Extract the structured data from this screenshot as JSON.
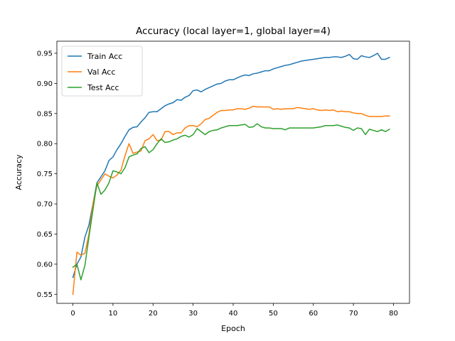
{
  "chart_data": {
    "type": "line",
    "title": "Accuracy (local layer=1, global layer=4)",
    "xlabel": "Epoch",
    "ylabel": "Accuracy",
    "xlim": [
      -4,
      84
    ],
    "ylim": [
      0.535,
      0.97
    ],
    "xticks": [
      0,
      10,
      20,
      30,
      40,
      50,
      60,
      70,
      80
    ],
    "yticks": [
      0.55,
      0.6,
      0.65,
      0.7,
      0.75,
      0.8,
      0.85,
      0.9,
      0.95
    ],
    "grid": false,
    "legend_position": "upper-left",
    "x": [
      0,
      1,
      2,
      3,
      4,
      5,
      6,
      7,
      8,
      9,
      10,
      11,
      12,
      13,
      14,
      15,
      16,
      17,
      18,
      19,
      20,
      21,
      22,
      23,
      24,
      25,
      26,
      27,
      28,
      29,
      30,
      31,
      32,
      33,
      34,
      35,
      36,
      37,
      38,
      39,
      40,
      41,
      42,
      43,
      44,
      45,
      46,
      47,
      48,
      49,
      50,
      51,
      52,
      53,
      54,
      55,
      56,
      57,
      58,
      59,
      60,
      61,
      62,
      63,
      64,
      65,
      66,
      67,
      68,
      69,
      70,
      71,
      72,
      73,
      74,
      75,
      76,
      77,
      78,
      79
    ],
    "series": [
      {
        "name": "Train Acc",
        "color": "#1f77b4",
        "values": [
          0.578,
          0.6,
          0.612,
          0.645,
          0.665,
          0.7,
          0.735,
          0.745,
          0.755,
          0.772,
          0.778,
          0.79,
          0.8,
          0.812,
          0.823,
          0.827,
          0.828,
          0.836,
          0.843,
          0.852,
          0.853,
          0.853,
          0.858,
          0.863,
          0.866,
          0.868,
          0.873,
          0.872,
          0.877,
          0.88,
          0.888,
          0.889,
          0.886,
          0.89,
          0.893,
          0.896,
          0.899,
          0.9,
          0.904,
          0.906,
          0.906,
          0.909,
          0.912,
          0.914,
          0.913,
          0.916,
          0.917,
          0.919,
          0.921,
          0.921,
          0.924,
          0.926,
          0.928,
          0.93,
          0.931,
          0.933,
          0.935,
          0.937,
          0.938,
          0.939,
          0.94,
          0.941,
          0.942,
          0.943,
          0.943,
          0.944,
          0.944,
          0.943,
          0.945,
          0.948,
          0.941,
          0.94,
          0.946,
          0.944,
          0.943,
          0.946,
          0.95,
          0.94,
          0.94,
          0.943
        ]
      },
      {
        "name": "Val Acc",
        "color": "#ff7f0e",
        "values": [
          0.55,
          0.62,
          0.615,
          0.618,
          0.65,
          0.7,
          0.73,
          0.74,
          0.75,
          0.746,
          0.743,
          0.748,
          0.756,
          0.78,
          0.8,
          0.784,
          0.786,
          0.788,
          0.805,
          0.808,
          0.815,
          0.805,
          0.806,
          0.82,
          0.82,
          0.815,
          0.818,
          0.818,
          0.826,
          0.83,
          0.83,
          0.828,
          0.833,
          0.84,
          0.842,
          0.847,
          0.852,
          0.855,
          0.855,
          0.856,
          0.856,
          0.858,
          0.858,
          0.857,
          0.859,
          0.862,
          0.861,
          0.861,
          0.861,
          0.861,
          0.857,
          0.858,
          0.857,
          0.858,
          0.858,
          0.858,
          0.86,
          0.859,
          0.858,
          0.857,
          0.858,
          0.856,
          0.855,
          0.856,
          0.855,
          0.856,
          0.853,
          0.854,
          0.853,
          0.853,
          0.851,
          0.85,
          0.85,
          0.847,
          0.845,
          0.845,
          0.845,
          0.845,
          0.846,
          0.846
        ]
      },
      {
        "name": "Test Acc",
        "color": "#2ca02c",
        "values": [
          0.595,
          0.6,
          0.574,
          0.598,
          0.645,
          0.69,
          0.735,
          0.716,
          0.723,
          0.735,
          0.755,
          0.753,
          0.75,
          0.76,
          0.778,
          0.781,
          0.783,
          0.792,
          0.795,
          0.785,
          0.79,
          0.8,
          0.808,
          0.802,
          0.803,
          0.806,
          0.808,
          0.812,
          0.814,
          0.811,
          0.815,
          0.825,
          0.82,
          0.815,
          0.82,
          0.822,
          0.823,
          0.826,
          0.828,
          0.83,
          0.83,
          0.83,
          0.831,
          0.832,
          0.827,
          0.828,
          0.833,
          0.828,
          0.826,
          0.826,
          0.825,
          0.825,
          0.825,
          0.823,
          0.826,
          0.826,
          0.826,
          0.826,
          0.826,
          0.826,
          0.826,
          0.827,
          0.828,
          0.83,
          0.83,
          0.83,
          0.831,
          0.829,
          0.827,
          0.826,
          0.822,
          0.826,
          0.825,
          0.815,
          0.824,
          0.822,
          0.82,
          0.823,
          0.82,
          0.824
        ]
      }
    ]
  }
}
